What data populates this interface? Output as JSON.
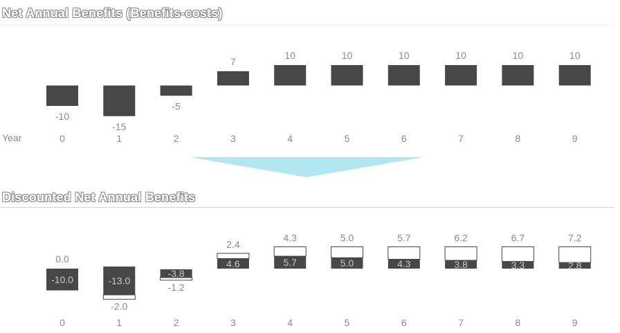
{
  "chart_data": [
    {
      "type": "bar",
      "title": "Net Annual Benefits (Benefits-costs)",
      "xlabel": "Year",
      "categories": [
        "0",
        "1",
        "2",
        "3",
        "4",
        "5",
        "6",
        "7",
        "8",
        "9"
      ],
      "values": [
        -10,
        -15,
        -5,
        7,
        10,
        10,
        10,
        10,
        10,
        10
      ],
      "value_labels": [
        "-10",
        "-15",
        "-5",
        "7",
        "10",
        "10",
        "10",
        "10",
        "10",
        "10"
      ],
      "bar_color": "#474747"
    },
    {
      "type": "bar",
      "title": "Discounted Net Annual Benefits",
      "categories": [
        "0",
        "1",
        "2",
        "3",
        "4",
        "5",
        "6",
        "7",
        "8",
        "9"
      ],
      "series": [
        {
          "values": [
            -10.0,
            -13.0,
            -3.8,
            4.6,
            5.7,
            5.0,
            4.3,
            3.8,
            3.3,
            2.8
          ],
          "labels": [
            "-10.0",
            "-13.0",
            "-3.8",
            "4.6",
            "5.7",
            "5.0",
            "4.3",
            "3.8",
            "3.3",
            "2.8"
          ],
          "color": "#474747"
        },
        {
          "values": [
            0.0,
            -2.0,
            -1.2,
            2.4,
            4.3,
            5.0,
            5.7,
            6.2,
            6.7,
            7.2
          ],
          "labels": [
            "0.0",
            "-2.0",
            "-1.2",
            "2.4",
            "4.3",
            "5.0",
            "5.7",
            "6.2",
            "6.7",
            "7.2"
          ],
          "color": "#ffffff"
        }
      ]
    }
  ],
  "arrow_color": "#b2e6f0"
}
